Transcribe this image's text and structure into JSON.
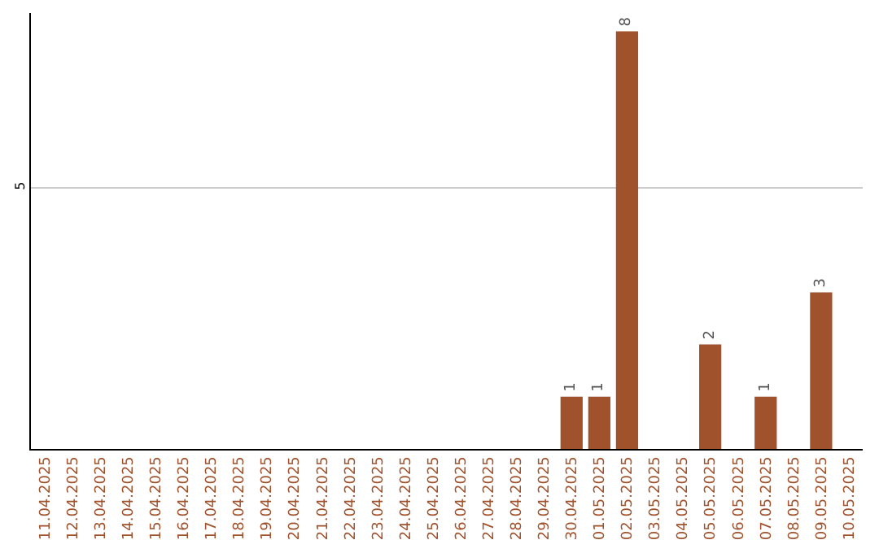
{
  "chart_data": {
    "type": "bar",
    "categories": [
      "11.04.2025",
      "12.04.2025",
      "13.04.2025",
      "14.04.2025",
      "15.04.2025",
      "16.04.2025",
      "17.04.2025",
      "18.04.2025",
      "19.04.2025",
      "20.04.2025",
      "21.04.2025",
      "22.04.2025",
      "23.04.2025",
      "24.04.2025",
      "25.04.2025",
      "26.04.2025",
      "27.04.2025",
      "28.04.2025",
      "29.04.2025",
      "30.04.2025",
      "01.05.2025",
      "02.05.2025",
      "03.05.2025",
      "04.05.2025",
      "05.05.2025",
      "06.05.2025",
      "07.05.2025",
      "08.05.2025",
      "09.05.2025",
      "10.05.2025"
    ],
    "values": [
      null,
      null,
      null,
      null,
      null,
      null,
      null,
      null,
      null,
      null,
      null,
      null,
      null,
      null,
      null,
      null,
      null,
      null,
      null,
      1,
      1,
      8,
      null,
      null,
      2,
      null,
      1,
      null,
      3,
      null
    ],
    "color": "#a0522d",
    "ylim": [
      0,
      8.35
    ],
    "yticks": [
      5
    ],
    "grid": "y",
    "data_labels": true
  }
}
